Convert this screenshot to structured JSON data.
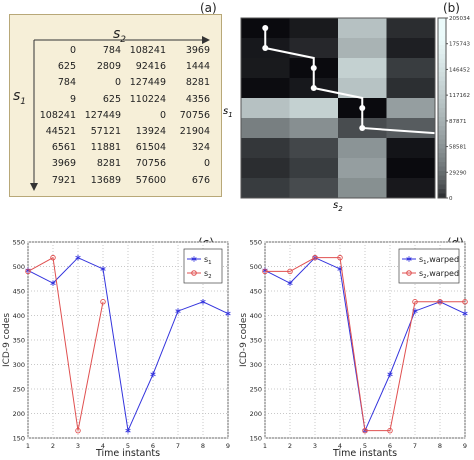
{
  "panel_labels": {
    "a": "(a)",
    "b": "(b)",
    "c": "(c)",
    "d": "(d)"
  },
  "matrix_table": {
    "row_axis": "s",
    "row_axis_sub": "1",
    "col_axis": "s",
    "col_axis_sub": "2",
    "rows": [
      [
        "0",
        "784",
        "108241",
        "3969"
      ],
      [
        "625",
        "2809",
        "92416",
        "1444"
      ],
      [
        "784",
        "0",
        "127449",
        "8281"
      ],
      [
        "9",
        "625",
        "110224",
        "4356"
      ],
      [
        "108241",
        "127449",
        "0",
        "70756"
      ],
      [
        "44521",
        "57121",
        "13924",
        "21904"
      ],
      [
        "6561",
        "11881",
        "61504",
        "324"
      ],
      [
        "3969",
        "8281",
        "70756",
        "0"
      ],
      [
        "7921",
        "13689",
        "57600",
        "676"
      ]
    ]
  },
  "chart_data": [
    {
      "type": "heatmap",
      "xlabel": "s2",
      "ylabel": "s1",
      "rows": 9,
      "cols": 4,
      "values": [
        [
          0,
          784,
          108241,
          3969
        ],
        [
          625,
          2809,
          92416,
          1444
        ],
        [
          784,
          0,
          127449,
          8281
        ],
        [
          9,
          625,
          110224,
          4356
        ],
        [
          108241,
          127449,
          0,
          70756
        ],
        [
          44521,
          57121,
          13924,
          21904
        ],
        [
          6561,
          11881,
          61504,
          324
        ],
        [
          3969,
          8281,
          70756,
          0
        ],
        [
          7921,
          13689,
          57600,
          676
        ]
      ],
      "path": [
        [
          0,
          0
        ],
        [
          1,
          0
        ],
        [
          2,
          1
        ],
        [
          3,
          1
        ],
        [
          4,
          2
        ],
        [
          5,
          2
        ],
        [
          6,
          3
        ],
        [
          7,
          3
        ],
        [
          8,
          3
        ]
      ],
      "colorbar_ticks": [
        "205034",
        "175743",
        "146452",
        "117162",
        "87871",
        "58581",
        "29290",
        "0"
      ],
      "colorbar_range": [
        0,
        205034
      ]
    },
    {
      "type": "line",
      "ylabel": "ICD-9 codes",
      "xlabel": "Time instants",
      "xlim": [
        1,
        9
      ],
      "ylim": [
        150,
        550
      ],
      "xticks": [
        "1",
        "2",
        "3",
        "4",
        "5",
        "6",
        "7",
        "8",
        "9"
      ],
      "yticks": [
        "150",
        "200",
        "250",
        "300",
        "350",
        "400",
        "450",
        "500",
        "550"
      ],
      "grid": true,
      "legend_position": "top-right",
      "series": [
        {
          "name": "s1",
          "x": [
            1,
            2,
            3,
            4,
            5,
            6,
            7,
            8,
            9
          ],
          "y": [
            492,
            466,
            518,
            495,
            165,
            280,
            409,
            428,
            404
          ],
          "color": "#3333dd",
          "marker": "asterisk"
        },
        {
          "name": "s2",
          "x": [
            1,
            2,
            3,
            4
          ],
          "y": [
            490,
            518,
            165,
            428
          ],
          "color": "#e05050",
          "marker": "circle"
        }
      ]
    },
    {
      "type": "line",
      "ylabel": "ICD-9 codes",
      "xlabel": "Time instants",
      "xlim": [
        1,
        9
      ],
      "ylim": [
        150,
        550
      ],
      "xticks": [
        "1",
        "2",
        "3",
        "4",
        "5",
        "6",
        "7",
        "8",
        "9"
      ],
      "yticks": [
        "150",
        "200",
        "250",
        "300",
        "350",
        "400",
        "450",
        "500",
        "550"
      ],
      "grid": true,
      "legend_position": "top-right",
      "series": [
        {
          "name": "s1,warped",
          "x": [
            1,
            2,
            3,
            4,
            5,
            6,
            7,
            8,
            9
          ],
          "y": [
            492,
            466,
            518,
            495,
            165,
            280,
            409,
            428,
            404
          ],
          "color": "#3333dd",
          "marker": "asterisk"
        },
        {
          "name": "s2,warped",
          "x": [
            1,
            2,
            3,
            4,
            5,
            6,
            7,
            8,
            9
          ],
          "y": [
            490,
            490,
            518,
            518,
            165,
            165,
            428,
            428,
            428
          ],
          "color": "#e05050",
          "marker": "circle"
        }
      ]
    }
  ],
  "legend_c": [
    {
      "main": "s",
      "sub": "1"
    },
    {
      "main": "s",
      "sub": "2"
    }
  ],
  "legend_d": [
    {
      "main": "s",
      "sub": "1",
      "suffix": ",warped"
    },
    {
      "main": "s",
      "sub": "2",
      "suffix": ",warped"
    }
  ]
}
